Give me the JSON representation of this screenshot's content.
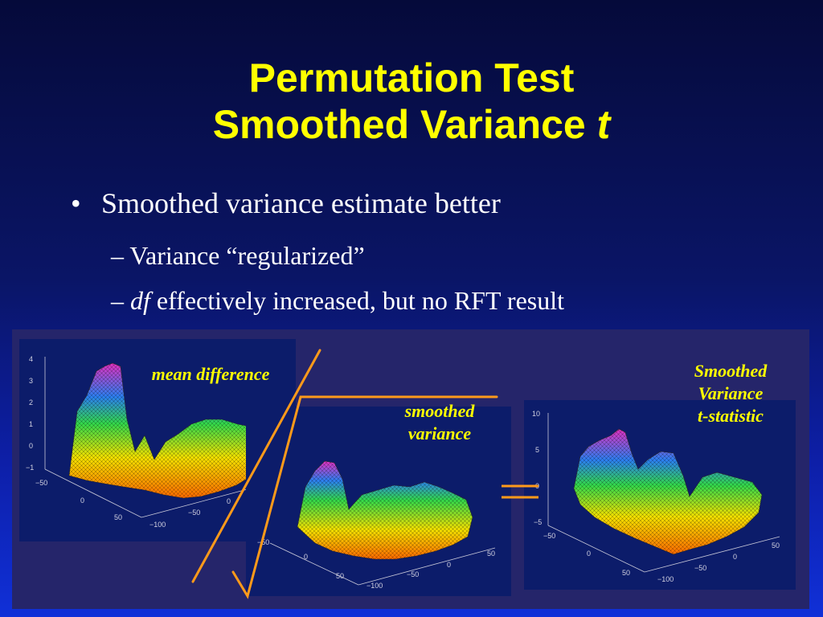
{
  "slide": {
    "title_line1": "Permutation Test",
    "title_line2_main": "Smoothed Variance ",
    "title_line2_italic": "t",
    "bullet1": "Smoothed variance estimate better",
    "bullet1_marker": "•",
    "sub1": "– Variance “regularized”",
    "sub2_dash": "– ",
    "sub2_italic": "df",
    "sub2_rest": " effectively increased, but no RFT result"
  },
  "figure": {
    "label_mean": "mean difference",
    "label_smoothed_1": "smoothed",
    "label_smoothed_2": "variance",
    "label_t_1": "Smoothed",
    "label_t_2": "Variance",
    "label_t_3": "t-statistic",
    "equals_sign": "=",
    "plot1": {
      "z_ticks": [
        "4",
        "3",
        "2",
        "1",
        "0",
        "−1"
      ],
      "x_ticks": [
        "−50",
        "0",
        "50"
      ],
      "y_ticks": [
        "50",
        "0",
        "−50",
        "−100"
      ]
    },
    "plot2": {
      "z_ticks": [
        "−50"
      ],
      "x_ticks": [
        "0",
        "50"
      ],
      "y_ticks": [
        "50",
        "0",
        "−50",
        "−100"
      ]
    },
    "plot3": {
      "z_ticks": [
        "10",
        "5",
        "0",
        "−5"
      ],
      "x_ticks": [
        "−50",
        "0",
        "50"
      ],
      "y_ticks": [
        "50",
        "0",
        "−50",
        "−100"
      ]
    },
    "colors": {
      "title": "#ffff00",
      "labels": "#ffff00",
      "orange_lines": "#ff9a1a"
    }
  }
}
